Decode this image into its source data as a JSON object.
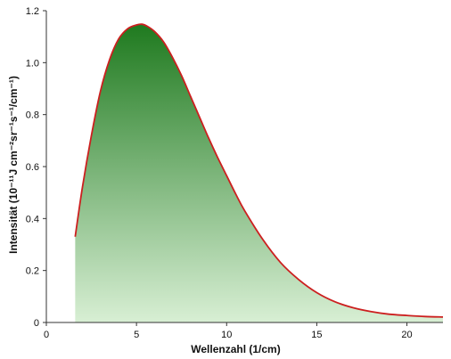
{
  "chart_data": {
    "type": "area",
    "title": "",
    "xlabel": "Wellenzahl (1/cm)",
    "ylabel": "Intensität (10⁻¹¹J cm⁻²sr⁻¹s⁻¹/cm⁻¹)",
    "xlim": [
      0,
      22
    ],
    "ylim": [
      0,
      1.2
    ],
    "xticks": [
      0,
      5,
      10,
      15,
      20
    ],
    "yticks": [
      0,
      0.2,
      0.4,
      0.6,
      0.8,
      1.0,
      1.2
    ],
    "ytick_labels": [
      "0",
      "0.2",
      "0.4",
      "0.6",
      "0.8",
      "1.0",
      "1.2"
    ],
    "grid": false,
    "legend": "none",
    "series": [
      {
        "x": [
          1.6,
          2,
          2.5,
          3,
          3.5,
          4,
          4.5,
          5,
          5.3,
          5.6,
          6,
          6.5,
          7,
          7.5,
          8,
          8.5,
          9,
          9.5,
          10,
          10.5,
          11,
          12,
          13,
          14,
          15,
          16,
          17,
          18,
          19,
          20,
          21,
          22
        ],
        "values": [
          0.33,
          0.52,
          0.72,
          0.89,
          1.01,
          1.09,
          1.13,
          1.145,
          1.148,
          1.14,
          1.12,
          1.08,
          1.02,
          0.95,
          0.87,
          0.79,
          0.71,
          0.635,
          0.565,
          0.495,
          0.43,
          0.32,
          0.23,
          0.165,
          0.115,
          0.08,
          0.057,
          0.042,
          0.032,
          0.027,
          0.023,
          0.021
        ]
      }
    ],
    "colors": {
      "line": "#cc1f1f",
      "fill_top": "#1f7a1f",
      "fill_bottom": "#d8efd4",
      "axis": "#333333"
    }
  }
}
